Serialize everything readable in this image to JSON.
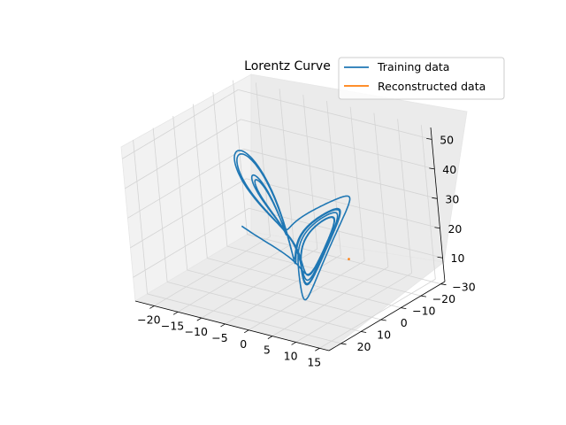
{
  "chart_data": {
    "type": "line3d",
    "title": "Lorentz Curve",
    "x_ticks": [
      -20,
      -15,
      -10,
      -5,
      0,
      5,
      10,
      15
    ],
    "y_ticks": [
      -30,
      -20,
      -10,
      0,
      10,
      20
    ],
    "z_ticks": [
      10,
      20,
      30,
      40,
      50
    ],
    "xlim": [
      -24,
      17
    ],
    "ylim": [
      -32,
      26
    ],
    "zlim": [
      2,
      54
    ],
    "grid": true,
    "legend_position": "top-right",
    "series": [
      {
        "name": "Training data",
        "color": "#1f77b4",
        "kind": "lorenz",
        "sigma": 10,
        "rho": 28,
        "beta": 2.6667,
        "start": [
          -8,
          8,
          27
        ],
        "dt": 0.002,
        "steps": 3700
      },
      {
        "name": "Reconstructed data",
        "color": "#ff7f0e",
        "kind": "points",
        "x": [
          0.3
        ],
        "y": [
          -24
        ],
        "z": [
          6
        ]
      }
    ]
  }
}
